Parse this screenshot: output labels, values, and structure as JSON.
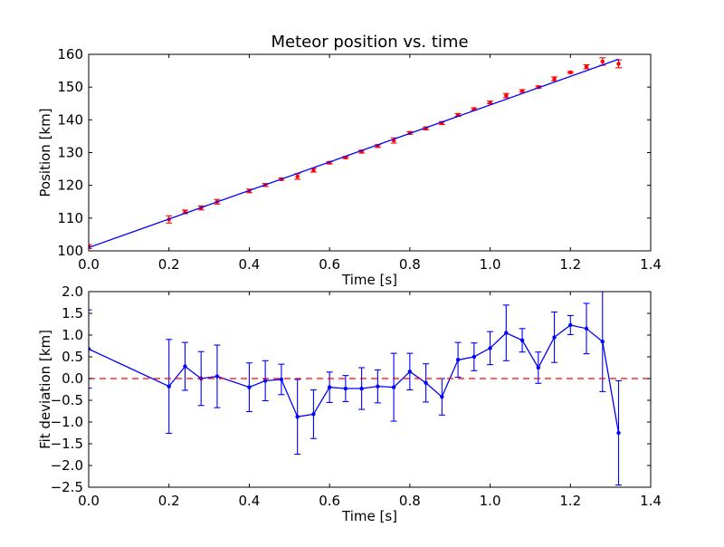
{
  "chart_data": [
    {
      "type": "scatter",
      "title": "Meteor position vs. time",
      "xlabel": "Time [s]",
      "ylabel": "Position [km]",
      "xlim": [
        0.0,
        1.4
      ],
      "ylim": [
        100,
        160
      ],
      "xticks": [
        "0.0",
        "0.2",
        "0.4",
        "0.6",
        "0.8",
        "1.0",
        "1.2",
        "1.4"
      ],
      "yticks": [
        "100",
        "110",
        "120",
        "130",
        "140",
        "150",
        "160"
      ],
      "grid": false,
      "series": [
        {
          "kind": "errorbar",
          "color": "#ff0000",
          "x": [
            0.0,
            0.2,
            0.24,
            0.28,
            0.32,
            0.4,
            0.44,
            0.48,
            0.52,
            0.56,
            0.6,
            0.64,
            0.68,
            0.72,
            0.76,
            0.8,
            0.84,
            0.88,
            0.92,
            0.96,
            1.0,
            1.04,
            1.08,
            1.12,
            1.16,
            1.2,
            1.24,
            1.28,
            1.32
          ],
          "y": [
            101.3,
            109.6,
            111.9,
            113.1,
            115.0,
            118.3,
            120.1,
            121.9,
            122.7,
            124.6,
            126.9,
            128.5,
            130.3,
            132.0,
            133.7,
            136.0,
            137.4,
            139.0,
            141.5,
            143.3,
            145.3,
            147.4,
            148.8,
            150.0,
            152.5,
            154.5,
            156.2,
            157.8,
            157.1
          ],
          "yerr": [
            0.6,
            1.1,
            0.55,
            0.6,
            0.7,
            0.55,
            0.45,
            0.35,
            0.85,
            0.55,
            0.35,
            0.3,
            0.45,
            0.4,
            0.8,
            0.4,
            0.45,
            0.45,
            0.4,
            0.35,
            0.4,
            0.65,
            0.4,
            0.35,
            0.6,
            0.25,
            0.6,
            1.15,
            1.2
          ]
        },
        {
          "kind": "fit-line",
          "color": "#0000ff",
          "x": [
            0.0,
            1.32
          ],
          "y": [
            101.0,
            158.5
          ]
        }
      ]
    },
    {
      "type": "line",
      "title": "",
      "xlabel": "Time [s]",
      "ylabel": "Fit deviation [km]",
      "xlim": [
        0.0,
        1.4
      ],
      "ylim": [
        -2.5,
        2.0
      ],
      "xticks": [
        "0.0",
        "0.2",
        "0.4",
        "0.6",
        "0.8",
        "1.0",
        "1.2",
        "1.4"
      ],
      "yticks": [
        "−2.5",
        "−2.0",
        "−1.5",
        "−1.0",
        "−0.5",
        "0.0",
        "0.5",
        "1.0",
        "1.5",
        "2.0"
      ],
      "grid": false,
      "series": [
        {
          "kind": "errorbar-line",
          "color": "#0000ff",
          "x": [
            0.0,
            0.2,
            0.24,
            0.28,
            0.32,
            0.4,
            0.44,
            0.48,
            0.52,
            0.56,
            0.6,
            0.64,
            0.68,
            0.72,
            0.76,
            0.8,
            0.84,
            0.88,
            0.92,
            0.96,
            1.0,
            1.04,
            1.08,
            1.12,
            1.16,
            1.2,
            1.24,
            1.28,
            1.32
          ],
          "y": [
            0.68,
            -0.18,
            0.28,
            0.0,
            0.05,
            -0.2,
            -0.05,
            -0.02,
            -0.88,
            -0.82,
            -0.2,
            -0.23,
            -0.23,
            -0.18,
            -0.2,
            0.16,
            -0.1,
            -0.42,
            0.43,
            0.5,
            0.7,
            1.05,
            0.88,
            0.25,
            0.95,
            1.23,
            1.15,
            0.85,
            -1.25
          ],
          "yerr": [
            0.9,
            1.08,
            0.55,
            0.62,
            0.72,
            0.56,
            0.46,
            0.35,
            0.86,
            0.56,
            0.35,
            0.3,
            0.48,
            0.38,
            0.78,
            0.42,
            0.44,
            0.42,
            0.4,
            0.32,
            0.38,
            0.64,
            0.27,
            0.36,
            0.58,
            0.22,
            0.58,
            1.15,
            1.2
          ]
        },
        {
          "kind": "reference-line",
          "color": "#ff0000",
          "dashed": true,
          "y": 0.0
        }
      ]
    }
  ]
}
